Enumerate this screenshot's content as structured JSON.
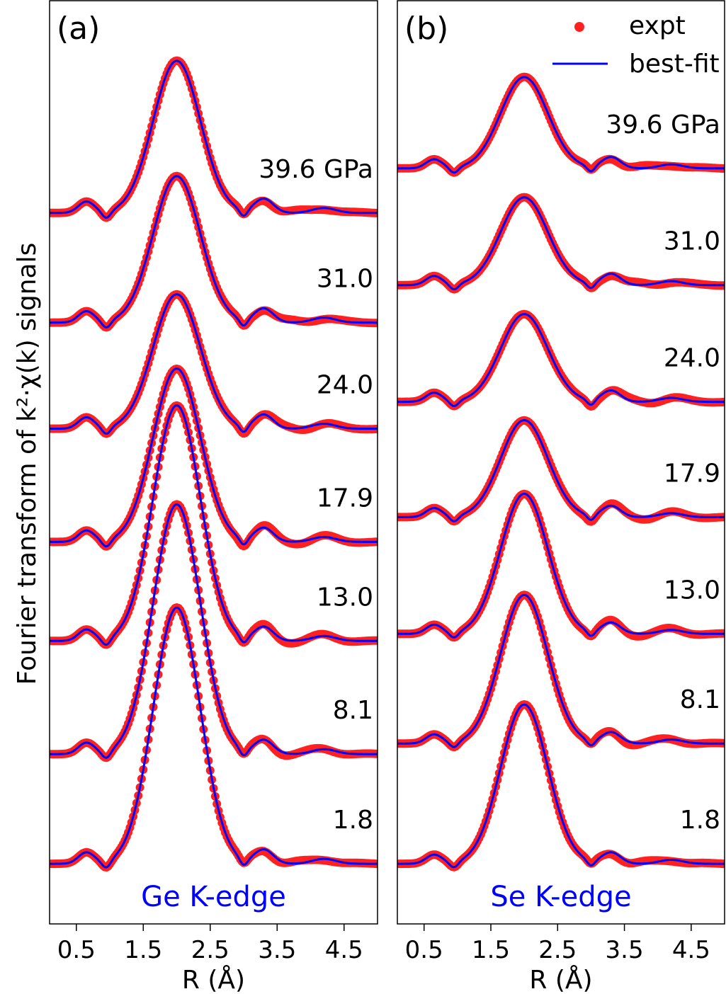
{
  "chart_data": [
    {
      "type": "line",
      "panel_label": "(a)",
      "edge_label": "Ge K-edge",
      "xlabel": "R (Å)",
      "ylabel": "Fourier transform of k²·χ(k) signals",
      "xlim": [
        0.1,
        5.0
      ],
      "xticks": [
        "0.5",
        "1.5",
        "2.5",
        "3.5",
        "4.5"
      ],
      "ylim": [
        0,
        13.05
      ],
      "series": [
        {
          "pressure_label": "39.6 GPa",
          "baseline": 10.05,
          "peak": 12.2
        },
        {
          "pressure_label": "31.0",
          "baseline": 8.5,
          "peak": 10.57
        },
        {
          "pressure_label": "24.0",
          "baseline": 7.0,
          "peak": 8.9
        },
        {
          "pressure_label": "17.9",
          "baseline": 5.4,
          "peak": 7.85
        },
        {
          "pressure_label": "13.0",
          "baseline": 4.0,
          "peak": 7.33
        },
        {
          "pressure_label": "8.1",
          "baseline": 2.4,
          "peak": 5.93
        },
        {
          "pressure_label": "1.8",
          "baseline": 0.85,
          "peak": 4.47
        }
      ]
    },
    {
      "type": "line",
      "panel_label": "(b)",
      "edge_label": "Se K-edge",
      "xlabel": "R (Å)",
      "xlim": [
        0.1,
        5.0
      ],
      "xticks": [
        "0.5",
        "1.5",
        "2.5",
        "3.5",
        "4.5"
      ],
      "ylim": [
        0,
        13.05
      ],
      "series": [
        {
          "pressure_label": "39.6 GPa",
          "baseline": 10.68,
          "peak": 11.97
        },
        {
          "pressure_label": "31.0",
          "baseline": 9.03,
          "peak": 10.27
        },
        {
          "pressure_label": "24.0",
          "baseline": 7.38,
          "peak": 8.62
        },
        {
          "pressure_label": "17.9",
          "baseline": 5.75,
          "peak": 7.12
        },
        {
          "pressure_label": "13.0",
          "baseline": 4.1,
          "peak": 6.08
        },
        {
          "pressure_label": "8.1",
          "baseline": 2.55,
          "peak": 4.65
        },
        {
          "pressure_label": "1.8",
          "baseline": 0.85,
          "peak": 3.1
        }
      ]
    }
  ],
  "legend": {
    "expt": "expt",
    "fit": "best-fit",
    "placement": "top-right"
  },
  "colors": {
    "expt": "#ff2020",
    "fit": "#0000ff",
    "edge_label": "#0000ff"
  }
}
